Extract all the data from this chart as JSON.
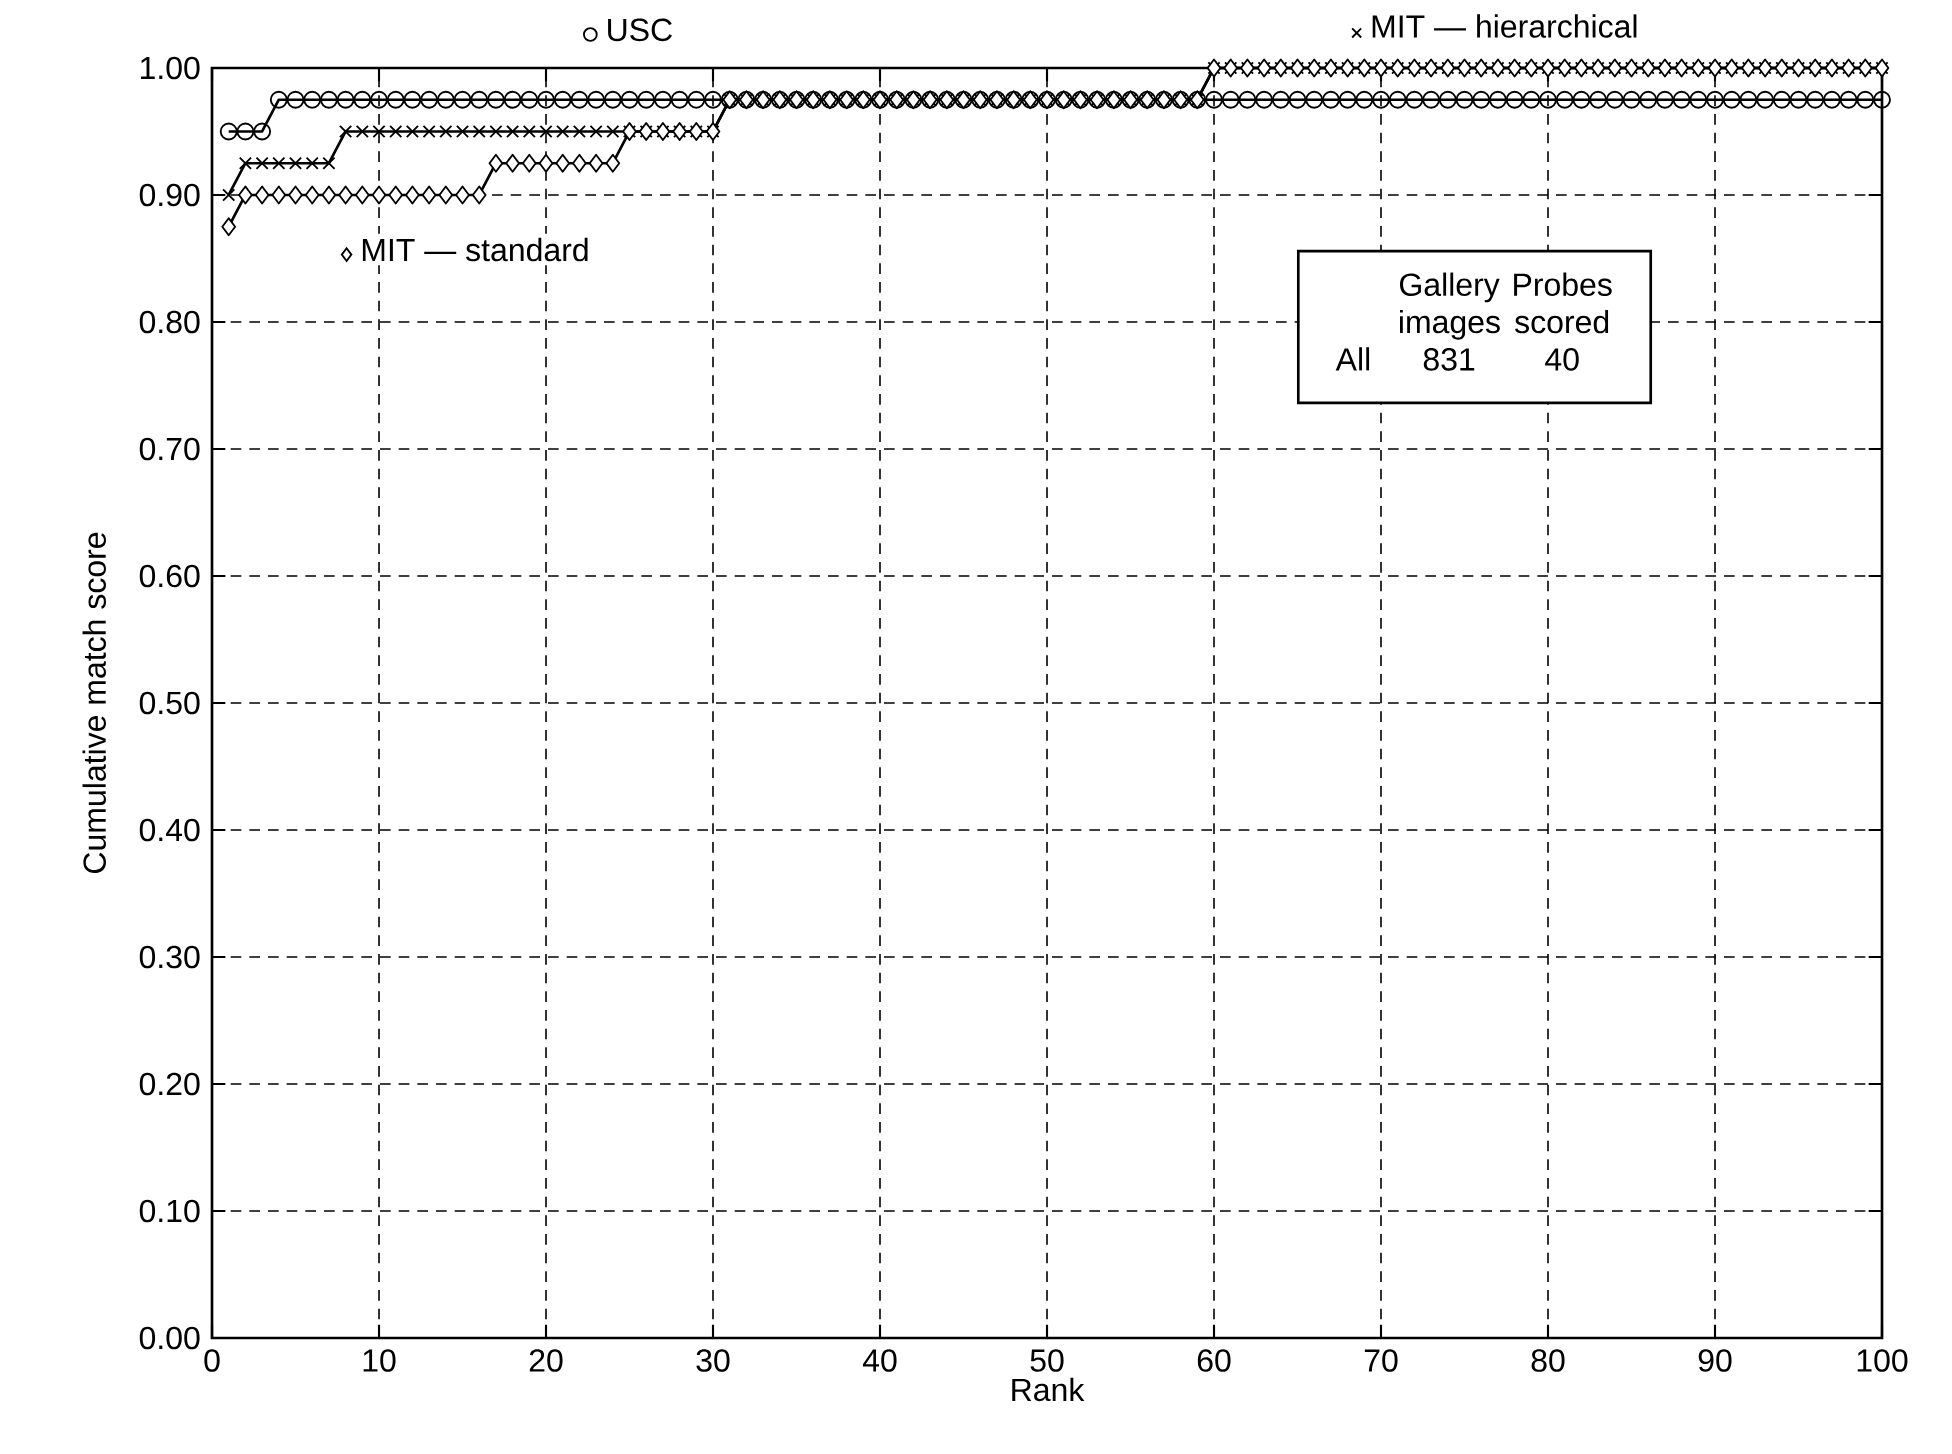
{
  "chart_data": {
    "type": "line",
    "xlabel": "Rank",
    "ylabel": "Cumulative match score",
    "x": [
      1,
      2,
      3,
      4,
      5,
      6,
      7,
      8,
      9,
      10,
      11,
      12,
      13,
      14,
      15,
      16,
      17,
      18,
      19,
      20,
      21,
      22,
      23,
      24,
      25,
      26,
      27,
      28,
      29,
      30,
      31,
      32,
      33,
      34,
      35,
      36,
      37,
      38,
      39,
      40,
      41,
      42,
      43,
      44,
      45,
      46,
      47,
      48,
      49,
      50,
      51,
      52,
      53,
      54,
      55,
      56,
      57,
      58,
      59,
      60,
      61,
      62,
      63,
      64,
      65,
      66,
      67,
      68,
      69,
      70,
      71,
      72,
      73,
      74,
      75,
      76,
      77,
      78,
      79,
      80,
      81,
      82,
      83,
      84,
      85,
      86,
      87,
      88,
      89,
      90,
      91,
      92,
      93,
      94,
      95,
      96,
      97,
      98,
      99,
      100
    ],
    "series": [
      {
        "name": "USC",
        "color": "#000000",
        "marker": "circle",
        "values": [
          0.95,
          0.95,
          0.95,
          0.975,
          0.975,
          0.975,
          0.975,
          0.975,
          0.975,
          0.975,
          0.975,
          0.975,
          0.975,
          0.975,
          0.975,
          0.975,
          0.975,
          0.975,
          0.975,
          0.975,
          0.975,
          0.975,
          0.975,
          0.975,
          0.975,
          0.975,
          0.975,
          0.975,
          0.975,
          0.975,
          0.975,
          0.975,
          0.975,
          0.975,
          0.975,
          0.975,
          0.975,
          0.975,
          0.975,
          0.975,
          0.975,
          0.975,
          0.975,
          0.975,
          0.975,
          0.975,
          0.975,
          0.975,
          0.975,
          0.975,
          0.975,
          0.975,
          0.975,
          0.975,
          0.975,
          0.975,
          0.975,
          0.975,
          0.975,
          0.975,
          0.975,
          0.975,
          0.975,
          0.975,
          0.975,
          0.975,
          0.975,
          0.975,
          0.975,
          0.975,
          0.975,
          0.975,
          0.975,
          0.975,
          0.975,
          0.975,
          0.975,
          0.975,
          0.975,
          0.975,
          0.975,
          0.975,
          0.975,
          0.975,
          0.975,
          0.975,
          0.975,
          0.975,
          0.975,
          0.975,
          0.975,
          0.975,
          0.975,
          0.975,
          0.975,
          0.975,
          0.975,
          0.975,
          0.975,
          0.975
        ]
      },
      {
        "name": "MIT — hierarchical",
        "color": "#000000",
        "marker": "cross",
        "values": [
          0.9,
          0.925,
          0.925,
          0.925,
          0.925,
          0.925,
          0.925,
          0.95,
          0.95,
          0.95,
          0.95,
          0.95,
          0.95,
          0.95,
          0.95,
          0.95,
          0.95,
          0.95,
          0.95,
          0.95,
          0.95,
          0.95,
          0.95,
          0.95,
          0.95,
          0.95,
          0.95,
          0.95,
          0.95,
          0.95,
          0.975,
          0.975,
          0.975,
          0.975,
          0.975,
          0.975,
          0.975,
          0.975,
          0.975,
          0.975,
          0.975,
          0.975,
          0.975,
          0.975,
          0.975,
          0.975,
          0.975,
          0.975,
          0.975,
          0.975,
          0.975,
          0.975,
          0.975,
          0.975,
          0.975,
          0.975,
          0.975,
          0.975,
          0.975,
          1.0,
          1.0,
          1.0,
          1.0,
          1.0,
          1.0,
          1.0,
          1.0,
          1.0,
          1.0,
          1.0,
          1.0,
          1.0,
          1.0,
          1.0,
          1.0,
          1.0,
          1.0,
          1.0,
          1.0,
          1.0,
          1.0,
          1.0,
          1.0,
          1.0,
          1.0,
          1.0,
          1.0,
          1.0,
          1.0,
          1.0,
          1.0,
          1.0,
          1.0,
          1.0,
          1.0,
          1.0,
          1.0,
          1.0,
          1.0,
          1.0
        ]
      },
      {
        "name": "MIT — standard",
        "color": "#000000",
        "marker": "diamond",
        "values": [
          0.875,
          0.9,
          0.9,
          0.9,
          0.9,
          0.9,
          0.9,
          0.9,
          0.9,
          0.9,
          0.9,
          0.9,
          0.9,
          0.9,
          0.9,
          0.9,
          0.925,
          0.925,
          0.925,
          0.925,
          0.925,
          0.925,
          0.925,
          0.925,
          0.95,
          0.95,
          0.95,
          0.95,
          0.95,
          0.95,
          0.975,
          0.975,
          0.975,
          0.975,
          0.975,
          0.975,
          0.975,
          0.975,
          0.975,
          0.975,
          0.975,
          0.975,
          0.975,
          0.975,
          0.975,
          0.975,
          0.975,
          0.975,
          0.975,
          0.975,
          0.975,
          0.975,
          0.975,
          0.975,
          0.975,
          0.975,
          0.975,
          0.975,
          0.975,
          1.0,
          1.0,
          1.0,
          1.0,
          1.0,
          1.0,
          1.0,
          1.0,
          1.0,
          1.0,
          1.0,
          1.0,
          1.0,
          1.0,
          1.0,
          1.0,
          1.0,
          1.0,
          1.0,
          1.0,
          1.0,
          1.0,
          1.0,
          1.0,
          1.0,
          1.0,
          1.0,
          1.0,
          1.0,
          1.0,
          1.0,
          1.0,
          1.0,
          1.0,
          1.0,
          1.0,
          1.0,
          1.0,
          1.0,
          1.0,
          1.0
        ]
      }
    ],
    "xlim": [
      0,
      100
    ],
    "ylim": [
      0,
      1
    ],
    "xticks": [
      0,
      10,
      20,
      30,
      40,
      50,
      60,
      70,
      80,
      90,
      100
    ],
    "yticks": [
      {
        "value": 0,
        "label": "0.00"
      },
      {
        "value": 0.1,
        "label": "0.10"
      },
      {
        "value": 0.2,
        "label": "0.20"
      },
      {
        "value": 0.3,
        "label": "0.30"
      },
      {
        "value": 0.4,
        "label": "0.40"
      },
      {
        "value": 0.5,
        "label": "0.50"
      },
      {
        "value": 0.6,
        "label": "0.60"
      },
      {
        "value": 0.7,
        "label": "0.70"
      },
      {
        "value": 0.8,
        "label": "0.80"
      },
      {
        "value": 0.9,
        "label": "0.90"
      },
      {
        "value": 1,
        "label": "1.00"
      }
    ],
    "grid": true,
    "line_style": "solid",
    "legend": "top",
    "annotations": [
      "Gallery images",
      "Probes scored",
      "All",
      "831",
      "40"
    ]
  }
}
